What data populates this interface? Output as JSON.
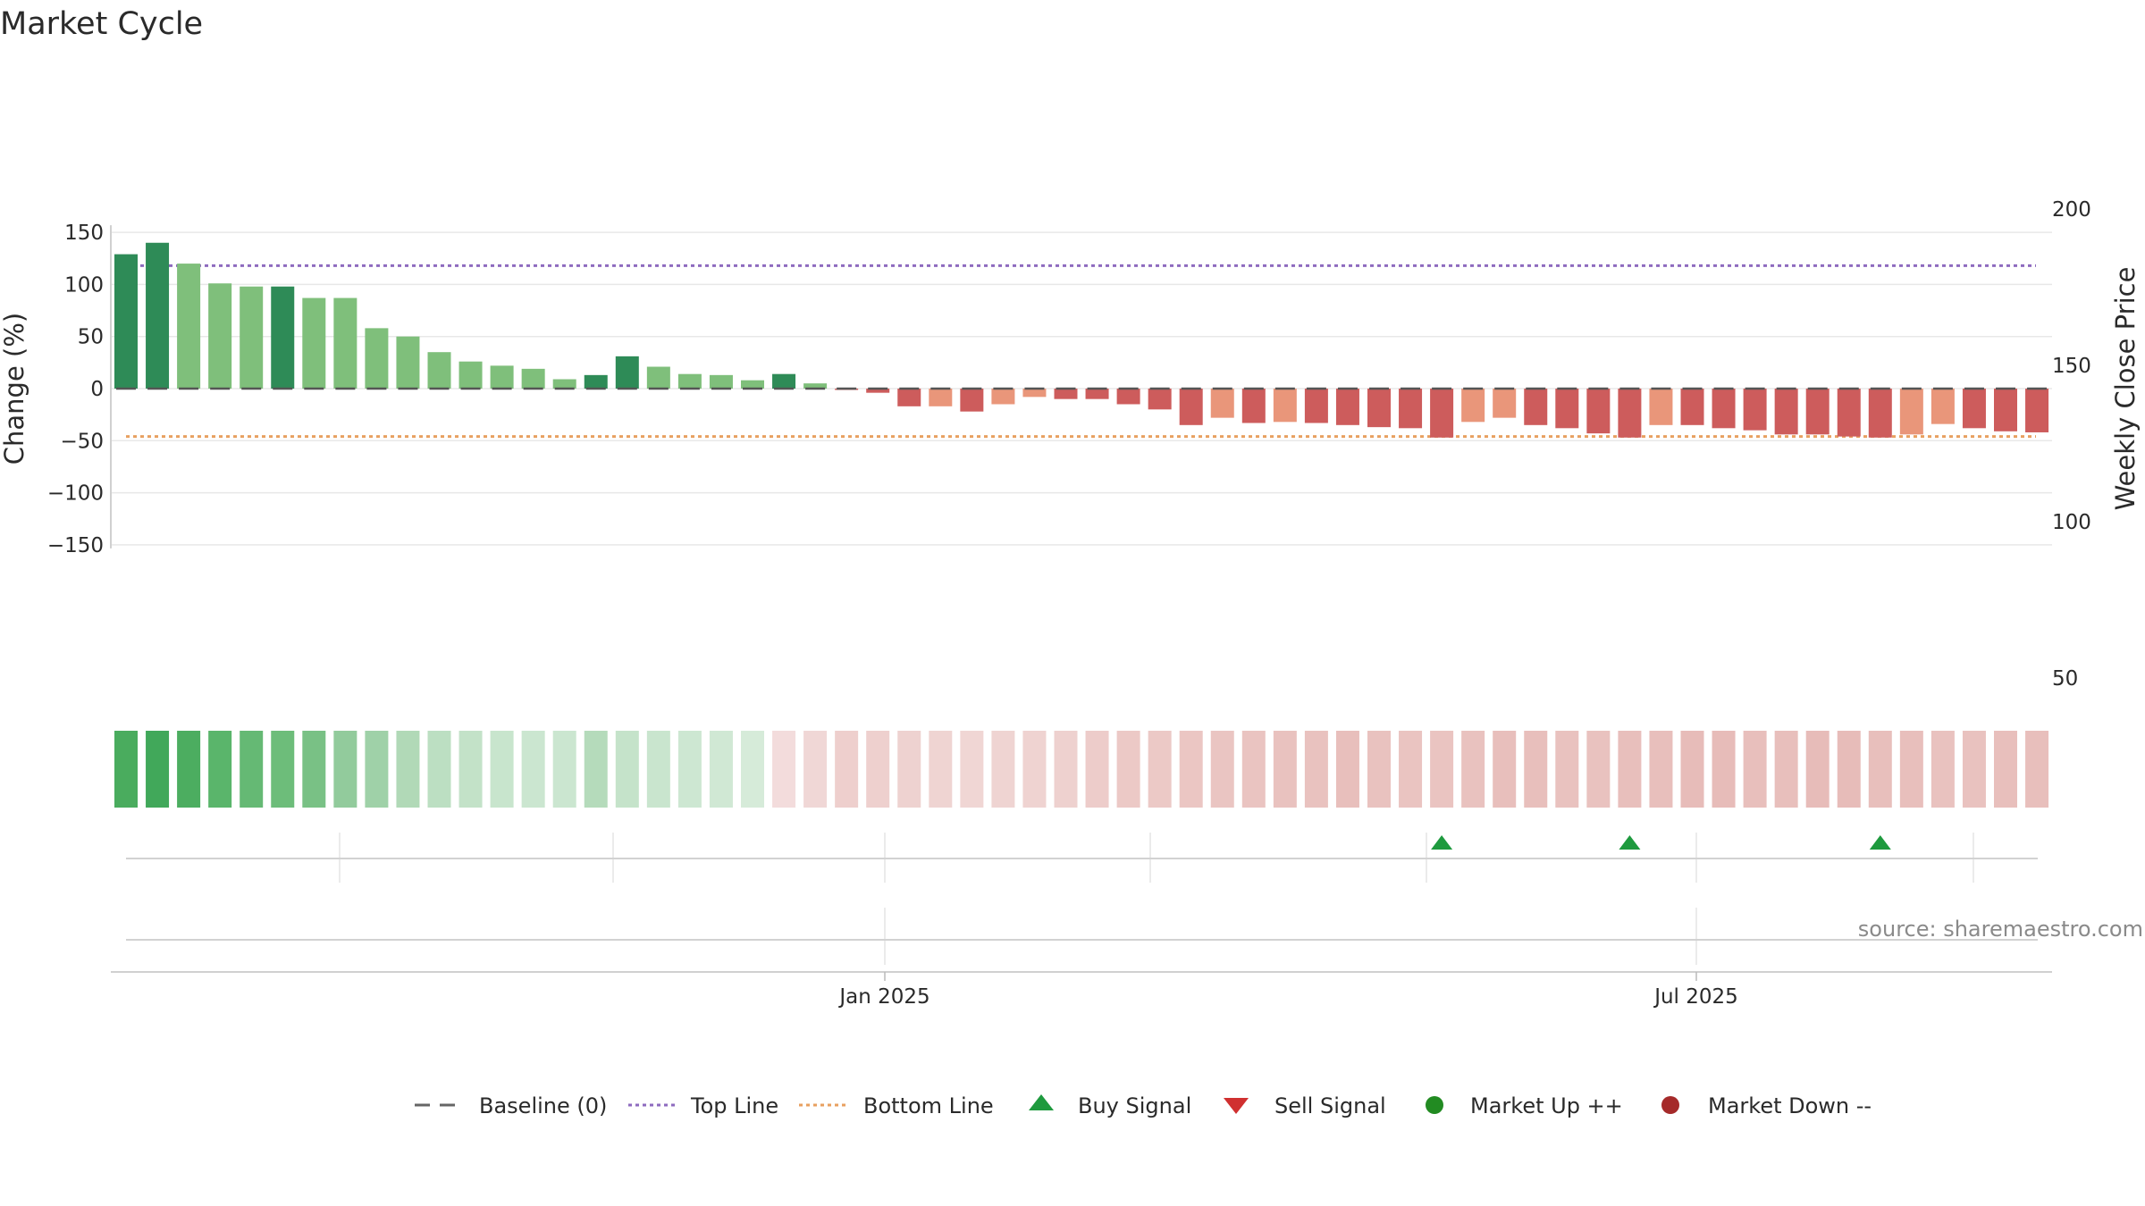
{
  "chart_data": {
    "type": "bar",
    "title": "Market Cycle",
    "ylabel_left": "Change (%)",
    "ylabel_right": "Weekly Close Price",
    "source": "source: sharemaestro.com",
    "ylim_left": [
      -150,
      150
    ],
    "yticks_left": [
      150,
      100,
      50,
      0,
      -50,
      -100,
      -150
    ],
    "yticks_left_labels": [
      "150",
      "100",
      "50",
      "0",
      "−50",
      "−100",
      "−150"
    ],
    "yticks_right": [
      200,
      150,
      100,
      50
    ],
    "yticks_right_labels": [
      "200",
      "150",
      "100",
      "50"
    ],
    "x_tick_labels": [
      "Jan 2025",
      "Jul 2025"
    ],
    "top_line": 118,
    "bottom_line": -46,
    "values": [
      129,
      140,
      120,
      101,
      98,
      98,
      87,
      87,
      58,
      50,
      35,
      26,
      22,
      19,
      9,
      13,
      31,
      21,
      14,
      13,
      8,
      14,
      5,
      -1,
      -4,
      -17,
      -17,
      -22,
      -15,
      -8,
      -10,
      -10,
      -15,
      -20,
      -35,
      -28,
      -33,
      -32,
      -33,
      -35,
      -37,
      -38,
      -47,
      -32,
      -28,
      -35,
      -38,
      -43,
      -47,
      -35,
      -35,
      -38,
      -40,
      -44,
      -44,
      -46,
      -47,
      -44,
      -34,
      -38,
      -41,
      -42
    ],
    "bar_colors": [
      "#2e8b57",
      "#2e8b57",
      "#7fbf7b",
      "#7fbf7b",
      "#7fbf7b",
      "#2e8b57",
      "#7fbf7b",
      "#7fbf7b",
      "#7fbf7b",
      "#7fbf7b",
      "#7fbf7b",
      "#7fbf7b",
      "#7fbf7b",
      "#7fbf7b",
      "#7fbf7b",
      "#2e8b57",
      "#2e8b57",
      "#7fbf7b",
      "#7fbf7b",
      "#7fbf7b",
      "#7fbf7b",
      "#2e8b57",
      "#7fbf7b",
      "#cd5c5c",
      "#cd5c5c",
      "#cd5c5c",
      "#e9967a",
      "#cd5c5c",
      "#e9967a",
      "#e9967a",
      "#cd5c5c",
      "#cd5c5c",
      "#cd5c5c",
      "#cd5c5c",
      "#cd5c5c",
      "#e9967a",
      "#cd5c5c",
      "#e9967a",
      "#cd5c5c",
      "#cd5c5c",
      "#cd5c5c",
      "#cd5c5c",
      "#cd5c5c",
      "#e9967a",
      "#e9967a",
      "#cd5c5c",
      "#cd5c5c",
      "#cd5c5c",
      "#cd5c5c",
      "#e9967a",
      "#cd5c5c",
      "#cd5c5c",
      "#cd5c5c",
      "#cd5c5c",
      "#cd5c5c",
      "#cd5c5c",
      "#cd5c5c",
      "#e9967a",
      "#e9967a",
      "#cd5c5c",
      "#cd5c5c",
      "#cd5c5c"
    ],
    "heat_colors": [
      "#4aac5e",
      "#41a85a",
      "#4cad60",
      "#5ab56b",
      "#65b974",
      "#6dbd7a",
      "#79c185",
      "#92cb9c",
      "#9fd1a8",
      "#b1d9b7",
      "#bcdfc2",
      "#c3e2c8",
      "#c8e5cd",
      "#cbe6d0",
      "#cbe6d0",
      "#b5dbbb",
      "#c5e3ca",
      "#c9e5ce",
      "#cde7d2",
      "#d0e8d4",
      "#d6ebd9",
      "#f3dcdc",
      "#f0d7d6",
      "#eecfcd",
      "#eed0ce",
      "#eed2d0",
      "#efd4d2",
      "#f0d6d4",
      "#efd4d2",
      "#efd3d1",
      "#eed1cf",
      "#edccca",
      "#ecc9c6",
      "#ecc9c6",
      "#ebc6c3",
      "#eac5c2",
      "#eac4c1",
      "#e9c2bf",
      "#e9c2bf",
      "#e8bfbc",
      "#e9c2bf",
      "#eac4c1",
      "#eac4c1",
      "#e9c2bf",
      "#e8bfbc",
      "#e8bfbc",
      "#e9c2bf",
      "#e9c2bf",
      "#e8bfbc",
      "#e8bfbc",
      "#e7bcb9",
      "#e7bcb9",
      "#e8bfbc",
      "#e8bfbc",
      "#e7bcb9",
      "#e7bcb9",
      "#e8bfbc",
      "#e8bfbc",
      "#e9c2bf",
      "#e9c2bf",
      "#e8bfbc",
      "#e8bfbc"
    ],
    "buy_signals": [
      42,
      48,
      56
    ],
    "sell_signals": [],
    "colors": {
      "top_line": "#8e6bbf",
      "bottom_line": "#e8a060",
      "baseline": "#555555",
      "buy": "#1e9a3e",
      "sell": "#d03030",
      "market_up": "#228b22",
      "market_down": "#a52a2a"
    },
    "legend": [
      {
        "label": "Baseline (0)",
        "icon": "dash-line-icon"
      },
      {
        "label": "Top Line",
        "icon": "dotted-purple-line-icon"
      },
      {
        "label": "Bottom Line",
        "icon": "dotted-orange-line-icon"
      },
      {
        "label": "Buy Signal",
        "icon": "up-triangle-icon"
      },
      {
        "label": "Sell Signal",
        "icon": "down-triangle-icon"
      },
      {
        "label": "Market Up ++",
        "icon": "green-dot-icon"
      },
      {
        "label": "Market Down --",
        "icon": "red-dot-icon"
      }
    ],
    "legend_placement": "bottom-center",
    "grid": true
  }
}
